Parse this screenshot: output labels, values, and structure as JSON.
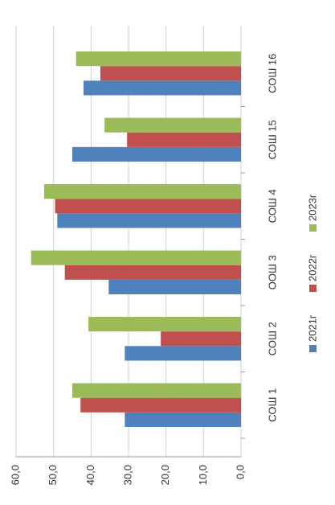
{
  "chart_data": {
    "type": "bar",
    "categories": [
      "СОШ 1",
      "СОШ 2",
      "ООШ 3",
      "СОШ 4",
      "СОШ 15",
      "СОШ 16"
    ],
    "series": [
      {
        "name": "2021г",
        "color": "#4f81bd",
        "values": [
          31,
          31,
          35.3,
          49,
          45,
          42
        ]
      },
      {
        "name": "2022г",
        "color": "#c0504d",
        "values": [
          42.8,
          21.4,
          47,
          49.6,
          30.4,
          37.5
        ]
      },
      {
        "name": "2023г",
        "color": "#9bbb59",
        "values": [
          45,
          40.7,
          56,
          52.5,
          36.4,
          44
        ]
      }
    ],
    "ylim": [
      0,
      60
    ],
    "yticks": [
      {
        "value": 0,
        "label": "0,0"
      },
      {
        "value": 10,
        "label": "10,0"
      },
      {
        "value": 20,
        "label": "20,0"
      },
      {
        "value": 30,
        "label": "30,0"
      },
      {
        "value": 40,
        "label": "40,0"
      },
      {
        "value": 50,
        "label": "50,0"
      },
      {
        "value": 60,
        "label": "60,0"
      }
    ],
    "grid": true
  }
}
